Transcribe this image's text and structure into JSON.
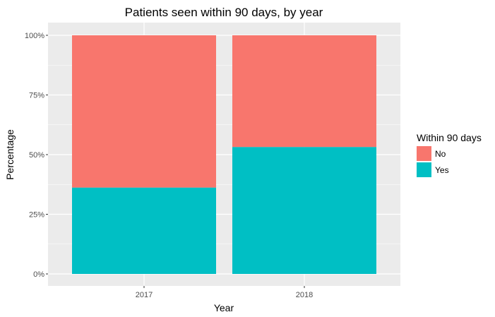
{
  "chart_data": {
    "type": "bar",
    "stacked": true,
    "title": "Patients seen within 90 days, by year",
    "xlabel": "Year",
    "ylabel": "Percentage",
    "categories": [
      "2017",
      "2018"
    ],
    "series": [
      {
        "name": "No",
        "values": [
          63.8,
          46.8
        ],
        "color": "#F8766D"
      },
      {
        "name": "Yes",
        "values": [
          36.2,
          53.2
        ],
        "color": "#00BFC4"
      }
    ],
    "ylim": [
      0,
      100
    ],
    "yticks": [
      0,
      25,
      50,
      75,
      100
    ],
    "ytick_labels": [
      "0%",
      "25%",
      "50%",
      "75%",
      "100%"
    ],
    "legend": {
      "title": "Within 90 days",
      "position": "right"
    },
    "grid": true,
    "panel_background": "#EBEBEB"
  }
}
